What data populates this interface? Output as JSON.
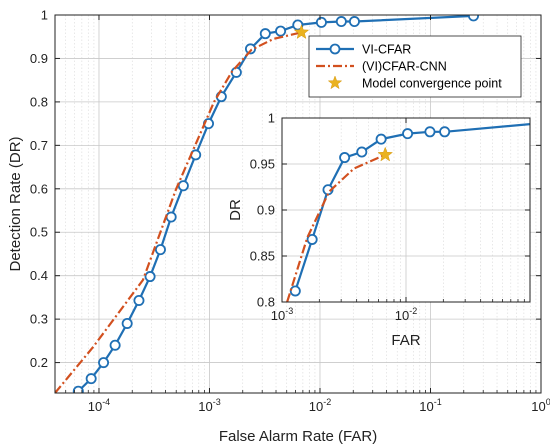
{
  "colors": {
    "vi_cfar": "#1f6fb4",
    "vi_cfar_cnn": "#d2501f",
    "convergence_star": "#eab21f",
    "grid": "#d9d9d9",
    "axis": "#222222"
  },
  "chart_data": [
    {
      "type": "line",
      "xscale": "log",
      "xlabel": "False Alarm Rate (FAR)",
      "ylabel": "Detection Rate (DR)",
      "xlim": [
        4e-05,
        1
      ],
      "ylim": [
        0.13,
        1
      ],
      "xtick_values": [
        0.0001,
        0.001,
        0.01,
        0.1,
        1
      ],
      "xtick_bases": [
        "10",
        "10",
        "10",
        "10",
        "10"
      ],
      "xtick_exponents": [
        "-4",
        "-3",
        "-2",
        "-1",
        "0"
      ],
      "yticks": [
        "0.2",
        "0.3",
        "0.4",
        "0.5",
        "0.6",
        "0.7",
        "0.8",
        "0.9",
        "1"
      ],
      "ytick_values": [
        0.2,
        0.3,
        0.4,
        0.5,
        0.6,
        0.7,
        0.8,
        0.9,
        1
      ],
      "grid": true,
      "legend": {
        "placement": "top-right",
        "entries": [
          "VI-CFAR",
          "(VI)CFAR-CNN",
          "Model convergence point"
        ]
      },
      "series": [
        {
          "name": "VI-CFAR",
          "style": "solid-circle",
          "x": [
            6.5e-05,
            8.5e-05,
            0.00011,
            0.00014,
            0.00018,
            0.00023,
            0.00029,
            0.00036,
            0.00045,
            0.00058,
            0.00075,
            0.00098,
            0.00128,
            0.00175,
            0.00235,
            0.0032,
            0.0044,
            0.0063,
            0.0103,
            0.0156,
            0.0205,
            0.245
          ],
          "y": [
            0.134,
            0.163,
            0.2,
            0.24,
            0.29,
            0.343,
            0.398,
            0.46,
            0.535,
            0.607,
            0.678,
            0.75,
            0.812,
            0.868,
            0.922,
            0.957,
            0.963,
            0.977,
            0.983,
            0.985,
            0.985,
            0.998
          ]
        },
        {
          "name": "(VI)CFAR-CNN",
          "style": "dashdot",
          "x": [
            4e-05,
            8.8e-05,
            0.00025,
            0.0005,
            0.0011,
            0.0016,
            0.0024,
            0.0038,
            0.0068
          ],
          "y": [
            0.13,
            0.235,
            0.39,
            0.6,
            0.8,
            0.87,
            0.92,
            0.945,
            0.96
          ]
        }
      ],
      "markers": [
        {
          "name": "Model convergence point",
          "x": 0.0068,
          "y": 0.96
        }
      ]
    },
    {
      "type": "line",
      "xscale": "log",
      "xlabel": "FAR",
      "ylabel": "DR",
      "xlim": [
        0.001,
        0.1
      ],
      "ylim": [
        0.8,
        1
      ],
      "xtick_values": [
        0.001,
        0.01
      ],
      "xtick_bases": [
        "10",
        "10"
      ],
      "xtick_exponents": [
        "-3",
        "-2"
      ],
      "yticks": [
        "0.8",
        "0.85",
        "0.9",
        "0.95",
        "1"
      ],
      "ytick_values": [
        0.8,
        0.85,
        0.9,
        0.95,
        1
      ],
      "grid": true,
      "series": [
        {
          "name": "VI-CFAR",
          "style": "solid-circle",
          "x": [
            0.00128,
            0.00175,
            0.00235,
            0.0032,
            0.0044,
            0.0063,
            0.0103,
            0.0156,
            0.0205,
            0.245
          ],
          "y": [
            0.812,
            0.868,
            0.922,
            0.957,
            0.963,
            0.977,
            0.983,
            0.985,
            0.985,
            0.998
          ]
        },
        {
          "name": "(VI)CFAR-CNN",
          "style": "dashdot",
          "x": [
            0.0011,
            0.0016,
            0.0024,
            0.0038,
            0.0068
          ],
          "y": [
            0.8,
            0.87,
            0.92,
            0.945,
            0.96
          ]
        }
      ],
      "markers": [
        {
          "name": "Model convergence point",
          "x": 0.0068,
          "y": 0.96
        }
      ]
    }
  ]
}
